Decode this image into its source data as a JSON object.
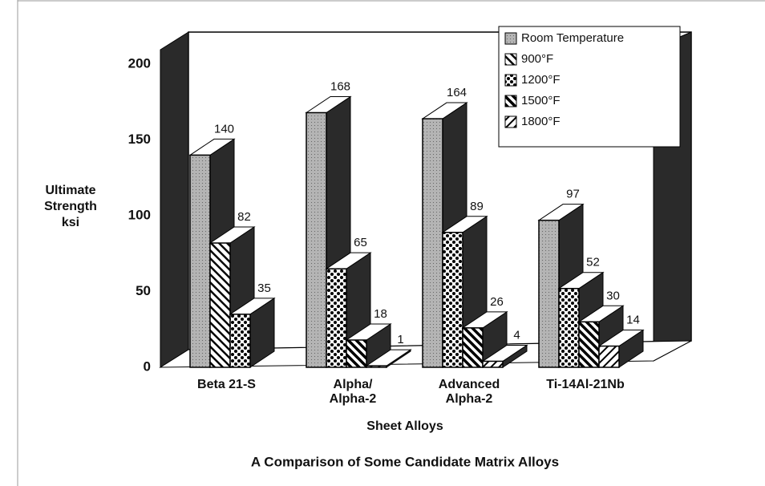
{
  "chart_data": {
    "type": "bar3d",
    "title": "A Comparison of Some Candidate Matrix Alloys",
    "x_label": "Sheet Alloys",
    "y_label": "Ultimate\nStrength\nksi",
    "categories": [
      "Beta 21-S",
      "Alpha/\nAlpha-2",
      "Advanced\nAlpha-2",
      "Ti-14Al-21Nb"
    ],
    "series": [
      {
        "name": "Room Temperature",
        "color": "#b4b4b4",
        "values": [
          140,
          168,
          164,
          97
        ]
      },
      {
        "name": "900°F",
        "color": "#ffffff",
        "values": [
          82,
          null,
          null,
          null
        ]
      },
      {
        "name": "1200°F",
        "color": "#ffffff",
        "values": [
          35,
          65,
          89,
          52
        ]
      },
      {
        "name": "1500°F",
        "color": "#ffffff",
        "values": [
          null,
          18,
          26,
          30
        ]
      },
      {
        "name": "1800°F",
        "color": "#ffffff",
        "values": [
          null,
          1,
          4,
          14
        ]
      }
    ],
    "ylim": [
      0,
      200
    ],
    "yticks": [
      0,
      50,
      100,
      150,
      200
    ]
  }
}
